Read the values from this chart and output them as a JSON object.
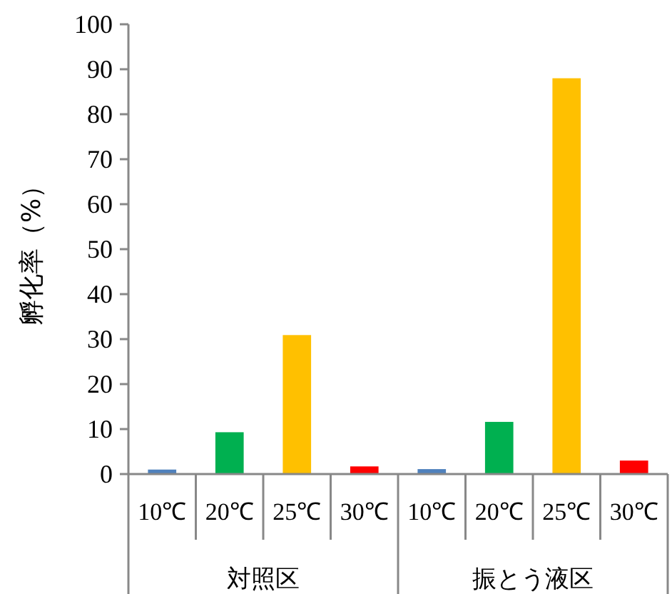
{
  "chart_data": {
    "type": "bar",
    "ylabel": "孵化率（%）",
    "categories": [
      "10℃",
      "20℃",
      "25℃",
      "30℃",
      "10℃",
      "20℃",
      "25℃",
      "30℃"
    ],
    "values": [
      1.0,
      9.3,
      30.9,
      1.7,
      1.1,
      11.6,
      88.0,
      3.0
    ],
    "colors": [
      "#4f81bd",
      "#00b050",
      "#ffc000",
      "#ff0000",
      "#4f81bd",
      "#00b050",
      "#ffc000",
      "#ff0000"
    ],
    "ylim": [
      0,
      100
    ],
    "yticks": [
      0,
      10,
      20,
      30,
      40,
      50,
      60,
      70,
      80,
      90,
      100
    ],
    "grid": false,
    "annotations": [
      "対照区",
      "振とう液区"
    ]
  }
}
